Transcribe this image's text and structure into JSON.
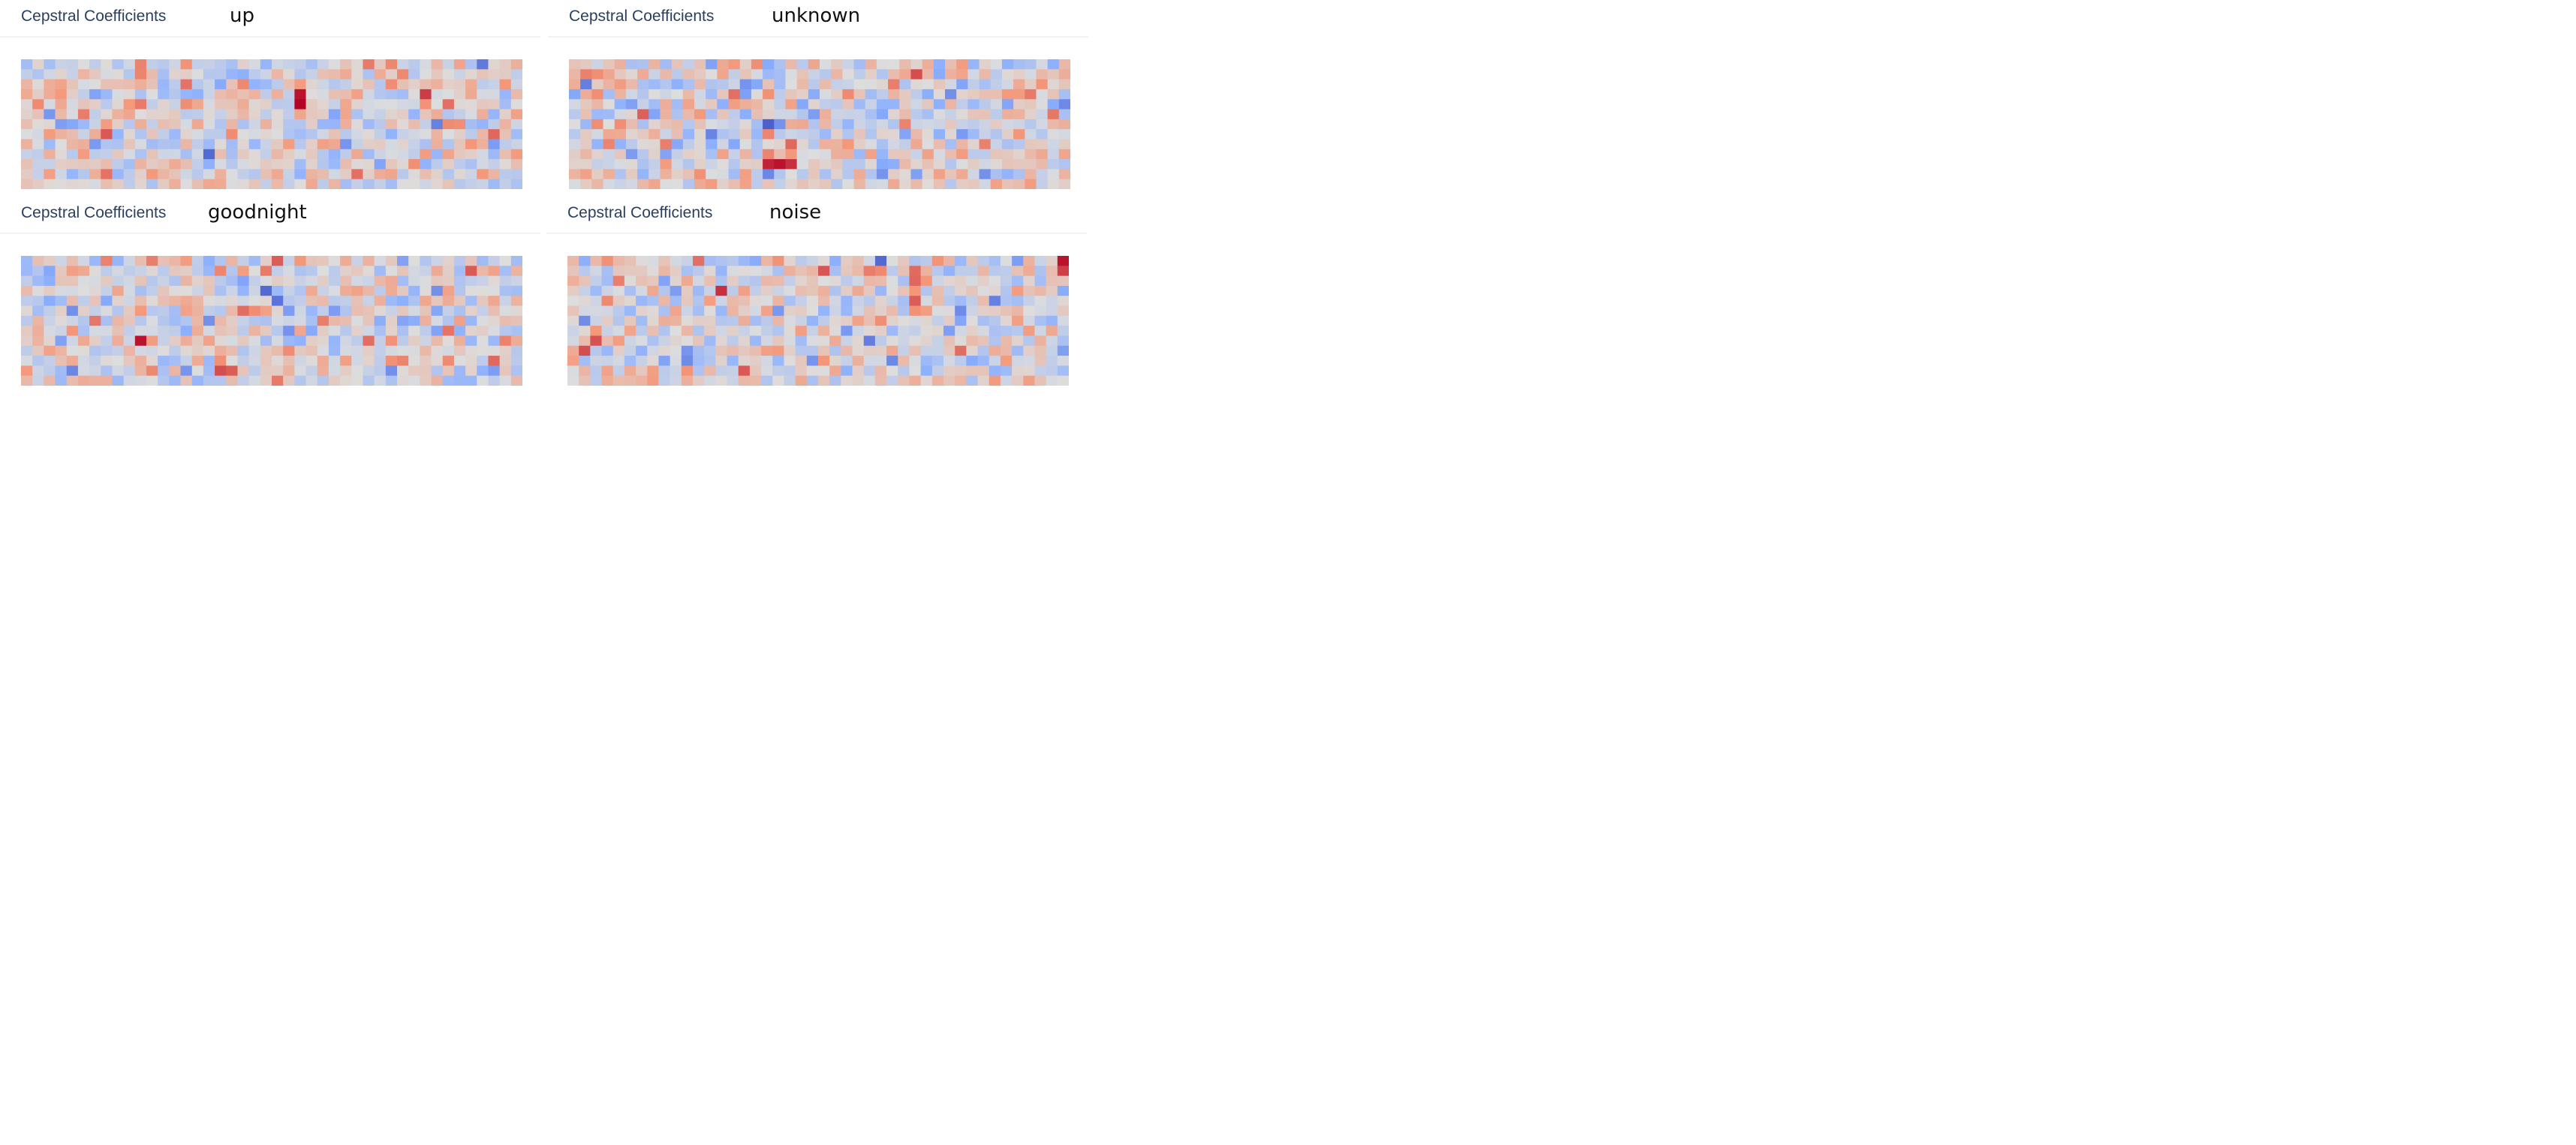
{
  "panels": [
    {
      "title": "Cepstral Coefficients",
      "label": "up",
      "chart_data": {
        "type": "heatmap",
        "rows": 13,
        "cols": 44,
        "seed": 11,
        "band": [
          0.48,
          0.45
        ],
        "cmap": "coolwarm",
        "zrange": [
          -1,
          1
        ],
        "hotspots": [
          [
            3,
            24,
            0.95
          ],
          [
            4,
            24,
            1.0
          ],
          [
            0,
            30,
            0.6
          ],
          [
            1,
            33,
            0.55
          ],
          [
            2,
            42,
            0.5
          ]
        ],
        "coldspots": [
          [
            9,
            16,
            -0.85
          ],
          [
            5,
            27,
            -0.55
          ],
          [
            8,
            41,
            -0.6
          ]
        ]
      }
    },
    {
      "title": "Cepstral Coefficients",
      "label": "unknown",
      "chart_data": {
        "type": "heatmap",
        "rows": 13,
        "cols": 44,
        "seed": 29,
        "band": [
          0.35,
          0.5
        ],
        "cmap": "coolwarm",
        "zrange": [
          -1,
          1
        ],
        "hotspots": [
          [
            10,
            17,
            0.9
          ],
          [
            10,
            18,
            0.95
          ],
          [
            10,
            19,
            0.85
          ],
          [
            1,
            30,
            0.75
          ],
          [
            3,
            40,
            0.6
          ]
        ],
        "coldspots": [
          [
            6,
            17,
            -0.9
          ],
          [
            11,
            17,
            -0.7
          ],
          [
            5,
            21,
            -0.6
          ],
          [
            4,
            38,
            -0.55
          ]
        ]
      }
    },
    {
      "title": "Cepstral Coefficients",
      "label": "goodnight",
      "chart_data": {
        "type": "heatmap",
        "rows": 13,
        "cols": 44,
        "seed": 47,
        "band": [
          0.55,
          0.4
        ],
        "cmap": "coolwarm",
        "zrange": [
          -1,
          1
        ],
        "hotspots": [
          [
            8,
            10,
            0.95
          ],
          [
            0,
            22,
            0.7
          ],
          [
            1,
            21,
            0.6
          ],
          [
            11,
            17,
            0.75
          ],
          [
            11,
            18,
            0.7
          ],
          [
            12,
            22,
            0.6
          ]
        ],
        "coldspots": [
          [
            3,
            21,
            -0.85
          ],
          [
            4,
            22,
            -0.8
          ],
          [
            5,
            27,
            -0.6
          ],
          [
            6,
            33,
            -0.55
          ],
          [
            2,
            2,
            -0.5
          ]
        ]
      }
    },
    {
      "title": "Cepstral Coefficients",
      "label": "noise",
      "chart_data": {
        "type": "heatmap",
        "rows": 13,
        "cols": 44,
        "seed": 73,
        "band": [
          0.4,
          0.45
        ],
        "cmap": "coolwarm",
        "zrange": [
          -1,
          1
        ],
        "hotspots": [
          [
            0,
            43,
            0.95
          ],
          [
            1,
            43,
            0.8
          ],
          [
            3,
            13,
            0.85
          ],
          [
            9,
            1,
            0.75
          ],
          [
            1,
            27,
            0.55
          ]
        ],
        "coldspots": [
          [
            0,
            27,
            -0.85
          ],
          [
            8,
            26,
            -0.75
          ],
          [
            3,
            9,
            -0.6
          ],
          [
            6,
            34,
            -0.55
          ]
        ]
      }
    }
  ]
}
